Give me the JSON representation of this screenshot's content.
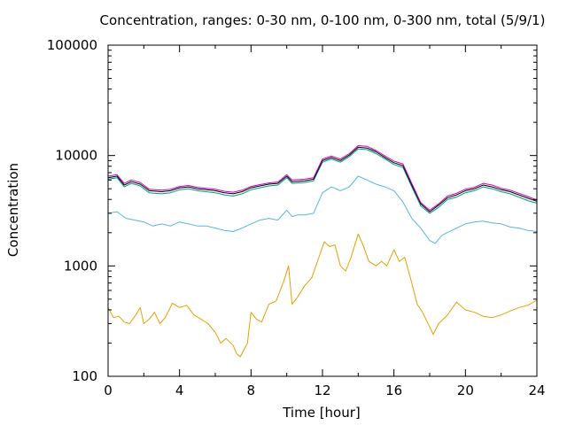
{
  "chart_data": {
    "type": "line",
    "title": "Concentration, ranges: 0-30 nm, 0-100 nm, 0-300 nm, total (5/9/1)",
    "xlabel": "Time [hour]",
    "ylabel": "Concentration",
    "xlim": [
      0,
      24
    ],
    "ylim": [
      100,
      100000
    ],
    "yscale": "log",
    "grid": false,
    "legend": "none",
    "xticks": [
      {
        "v": 0,
        "label": "0"
      },
      {
        "v": 4,
        "label": "4"
      },
      {
        "v": 8,
        "label": "8"
      },
      {
        "v": 12,
        "label": "12"
      },
      {
        "v": 16,
        "label": "16"
      },
      {
        "v": 20,
        "label": "20"
      },
      {
        "v": 24,
        "label": "24"
      }
    ],
    "yticks": [
      {
        "v": 100,
        "label": "100"
      },
      {
        "v": 1000,
        "label": "1000"
      },
      {
        "v": 10000,
        "label": "10000"
      },
      {
        "v": 100000,
        "label": "100000"
      }
    ],
    "series": [
      {
        "color": "#e69f00",
        "points": [
          [
            0,
            420
          ],
          [
            0.3,
            340
          ],
          [
            0.6,
            350
          ],
          [
            0.9,
            310
          ],
          [
            1.2,
            300
          ],
          [
            1.5,
            350
          ],
          [
            1.8,
            420
          ],
          [
            2.0,
            300
          ],
          [
            2.3,
            330
          ],
          [
            2.6,
            380
          ],
          [
            2.9,
            300
          ],
          [
            3.2,
            340
          ],
          [
            3.6,
            460
          ],
          [
            4.0,
            420
          ],
          [
            4.4,
            440
          ],
          [
            4.8,
            360
          ],
          [
            5.2,
            330
          ],
          [
            5.6,
            300
          ],
          [
            6.0,
            250
          ],
          [
            6.3,
            200
          ],
          [
            6.6,
            220
          ],
          [
            7.0,
            190
          ],
          [
            7.2,
            160
          ],
          [
            7.4,
            150
          ],
          [
            7.8,
            200
          ],
          [
            8.0,
            380
          ],
          [
            8.3,
            330
          ],
          [
            8.6,
            310
          ],
          [
            9.0,
            450
          ],
          [
            9.4,
            480
          ],
          [
            9.8,
            700
          ],
          [
            10.1,
            1000
          ],
          [
            10.3,
            450
          ],
          [
            10.6,
            520
          ],
          [
            11.0,
            660
          ],
          [
            11.4,
            780
          ],
          [
            11.8,
            1200
          ],
          [
            12.1,
            1650
          ],
          [
            12.4,
            1500
          ],
          [
            12.7,
            1550
          ],
          [
            13.0,
            1000
          ],
          [
            13.3,
            900
          ],
          [
            13.6,
            1200
          ],
          [
            14.0,
            1950
          ],
          [
            14.3,
            1500
          ],
          [
            14.6,
            1100
          ],
          [
            15.0,
            1000
          ],
          [
            15.3,
            1100
          ],
          [
            15.6,
            1000
          ],
          [
            16.0,
            1400
          ],
          [
            16.3,
            1100
          ],
          [
            16.6,
            1200
          ],
          [
            17.0,
            700
          ],
          [
            17.3,
            450
          ],
          [
            17.6,
            380
          ],
          [
            18.0,
            280
          ],
          [
            18.2,
            240
          ],
          [
            18.5,
            300
          ],
          [
            19.0,
            360
          ],
          [
            19.5,
            470
          ],
          [
            20.0,
            400
          ],
          [
            20.5,
            380
          ],
          [
            21.0,
            350
          ],
          [
            21.5,
            340
          ],
          [
            22.0,
            360
          ],
          [
            22.5,
            390
          ],
          [
            23.0,
            420
          ],
          [
            23.5,
            440
          ],
          [
            24.0,
            490
          ]
        ]
      },
      {
        "color": "#56b4e9",
        "points": [
          [
            0,
            3000
          ],
          [
            0.5,
            3100
          ],
          [
            1.0,
            2700
          ],
          [
            1.5,
            2600
          ],
          [
            2.0,
            2500
          ],
          [
            2.5,
            2300
          ],
          [
            3.0,
            2400
          ],
          [
            3.5,
            2300
          ],
          [
            4.0,
            2500
          ],
          [
            4.5,
            2400
          ],
          [
            5.0,
            2300
          ],
          [
            5.5,
            2300
          ],
          [
            6.0,
            2200
          ],
          [
            6.5,
            2100
          ],
          [
            7.0,
            2050
          ],
          [
            7.5,
            2200
          ],
          [
            8.0,
            2400
          ],
          [
            8.5,
            2600
          ],
          [
            9.0,
            2700
          ],
          [
            9.5,
            2600
          ],
          [
            10.0,
            3200
          ],
          [
            10.3,
            2800
          ],
          [
            10.6,
            2900
          ],
          [
            11.0,
            2900
          ],
          [
            11.5,
            3000
          ],
          [
            12.0,
            4600
          ],
          [
            12.5,
            5200
          ],
          [
            13.0,
            4800
          ],
          [
            13.5,
            5200
          ],
          [
            14.0,
            6500
          ],
          [
            14.5,
            6000
          ],
          [
            15.0,
            5500
          ],
          [
            15.5,
            5200
          ],
          [
            16.0,
            4800
          ],
          [
            16.5,
            3800
          ],
          [
            17.0,
            2700
          ],
          [
            17.5,
            2200
          ],
          [
            18.0,
            1700
          ],
          [
            18.3,
            1600
          ],
          [
            18.7,
            1900
          ],
          [
            19.5,
            2200
          ],
          [
            20.0,
            2400
          ],
          [
            20.5,
            2500
          ],
          [
            21.0,
            2550
          ],
          [
            21.5,
            2450
          ],
          [
            22.0,
            2400
          ],
          [
            22.5,
            2250
          ],
          [
            23.0,
            2200
          ],
          [
            23.5,
            2100
          ],
          [
            24.0,
            2050
          ]
        ]
      },
      {
        "color": "#009e73",
        "points": [
          [
            0,
            6100
          ],
          [
            0.5,
            6300
          ],
          [
            0.9,
            5200
          ],
          [
            1.3,
            5600
          ],
          [
            1.8,
            5300
          ],
          [
            2.3,
            4600
          ],
          [
            3.0,
            4500
          ],
          [
            3.5,
            4600
          ],
          [
            4.0,
            4900
          ],
          [
            4.5,
            5000
          ],
          [
            5.0,
            4800
          ],
          [
            5.5,
            4700
          ],
          [
            6.0,
            4600
          ],
          [
            6.5,
            4400
          ],
          [
            7.0,
            4300
          ],
          [
            7.5,
            4500
          ],
          [
            8.0,
            4900
          ],
          [
            8.5,
            5100
          ],
          [
            9.0,
            5300
          ],
          [
            9.5,
            5400
          ],
          [
            10.0,
            6300
          ],
          [
            10.3,
            5600
          ],
          [
            11.0,
            5700
          ],
          [
            11.5,
            5900
          ],
          [
            12.0,
            8700
          ],
          [
            12.5,
            9300
          ],
          [
            13.0,
            8700
          ],
          [
            13.5,
            9800
          ],
          [
            14.0,
            11500
          ],
          [
            14.5,
            11300
          ],
          [
            15.0,
            10400
          ],
          [
            15.5,
            9300
          ],
          [
            16.0,
            8300
          ],
          [
            16.5,
            7800
          ],
          [
            17.0,
            5200
          ],
          [
            17.5,
            3500
          ],
          [
            18.0,
            3000
          ],
          [
            18.5,
            3400
          ],
          [
            19.0,
            4000
          ],
          [
            19.5,
            4200
          ],
          [
            20.0,
            4600
          ],
          [
            20.5,
            4800
          ],
          [
            21.0,
            5200
          ],
          [
            21.5,
            5000
          ],
          [
            22.0,
            4700
          ],
          [
            22.5,
            4500
          ],
          [
            23.0,
            4200
          ],
          [
            23.5,
            3900
          ],
          [
            24.0,
            3700
          ]
        ]
      },
      {
        "color": "#000000",
        "points": [
          [
            0,
            6300
          ],
          [
            0.5,
            6500
          ],
          [
            0.9,
            5400
          ],
          [
            1.3,
            5800
          ],
          [
            1.8,
            5500
          ],
          [
            2.3,
            4800
          ],
          [
            3.0,
            4700
          ],
          [
            3.5,
            4800
          ],
          [
            4.0,
            5100
          ],
          [
            4.5,
            5200
          ],
          [
            5.0,
            5000
          ],
          [
            5.5,
            4900
          ],
          [
            6.0,
            4800
          ],
          [
            6.5,
            4600
          ],
          [
            7.0,
            4500
          ],
          [
            7.5,
            4700
          ],
          [
            8.0,
            5100
          ],
          [
            8.5,
            5300
          ],
          [
            9.0,
            5500
          ],
          [
            9.5,
            5600
          ],
          [
            10.0,
            6500
          ],
          [
            10.3,
            5800
          ],
          [
            11.0,
            5900
          ],
          [
            11.5,
            6100
          ],
          [
            12.0,
            9000
          ],
          [
            12.5,
            9600
          ],
          [
            13.0,
            9000
          ],
          [
            13.5,
            10100
          ],
          [
            14.0,
            11900
          ],
          [
            14.5,
            11700
          ],
          [
            15.0,
            10800
          ],
          [
            15.5,
            9600
          ],
          [
            16.0,
            8600
          ],
          [
            16.5,
            8100
          ],
          [
            17.0,
            5400
          ],
          [
            17.5,
            3650
          ],
          [
            18.0,
            3100
          ],
          [
            18.5,
            3550
          ],
          [
            19.0,
            4150
          ],
          [
            19.5,
            4400
          ],
          [
            20.0,
            4800
          ],
          [
            20.5,
            5000
          ],
          [
            21.0,
            5400
          ],
          [
            21.5,
            5200
          ],
          [
            22.0,
            4900
          ],
          [
            22.5,
            4700
          ],
          [
            23.0,
            4400
          ],
          [
            23.5,
            4100
          ],
          [
            24.0,
            3850
          ]
        ]
      },
      {
        "color": "#cc00cc",
        "points": [
          [
            0,
            6500
          ],
          [
            0.5,
            6700
          ],
          [
            0.9,
            5600
          ],
          [
            1.3,
            6000
          ],
          [
            1.8,
            5700
          ],
          [
            2.3,
            4950
          ],
          [
            3.0,
            4850
          ],
          [
            3.5,
            4950
          ],
          [
            4.0,
            5250
          ],
          [
            4.5,
            5350
          ],
          [
            5.0,
            5150
          ],
          [
            5.5,
            5050
          ],
          [
            6.0,
            4950
          ],
          [
            6.5,
            4750
          ],
          [
            7.0,
            4650
          ],
          [
            7.5,
            4850
          ],
          [
            8.0,
            5250
          ],
          [
            8.5,
            5450
          ],
          [
            9.0,
            5650
          ],
          [
            9.5,
            5750
          ],
          [
            10.0,
            6700
          ],
          [
            10.3,
            6000
          ],
          [
            11.0,
            6100
          ],
          [
            11.5,
            6300
          ],
          [
            12.0,
            9300
          ],
          [
            12.5,
            9900
          ],
          [
            13.0,
            9300
          ],
          [
            13.5,
            10400
          ],
          [
            14.0,
            12300
          ],
          [
            14.5,
            12100
          ],
          [
            15.0,
            11100
          ],
          [
            15.5,
            9900
          ],
          [
            16.0,
            8900
          ],
          [
            16.5,
            8400
          ],
          [
            17.0,
            5600
          ],
          [
            17.5,
            3750
          ],
          [
            18.0,
            3200
          ],
          [
            18.5,
            3650
          ],
          [
            19.0,
            4300
          ],
          [
            19.5,
            4550
          ],
          [
            20.0,
            4950
          ],
          [
            20.5,
            5150
          ],
          [
            21.0,
            5600
          ],
          [
            21.5,
            5400
          ],
          [
            22.0,
            5050
          ],
          [
            22.5,
            4850
          ],
          [
            23.0,
            4550
          ],
          [
            23.5,
            4250
          ],
          [
            24.0,
            3950
          ]
        ]
      }
    ]
  }
}
